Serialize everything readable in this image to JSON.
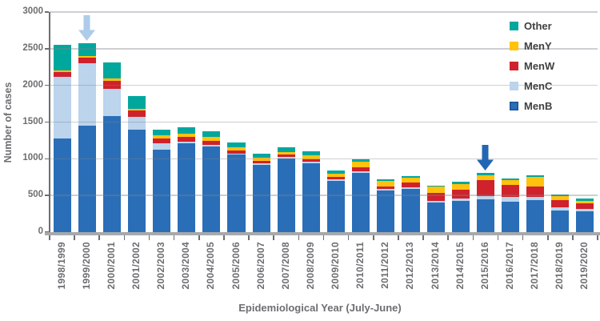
{
  "chart_data": {
    "type": "bar",
    "stacked": true,
    "title": "",
    "xlabel": "Epidemiological Year (July-June)",
    "ylabel": "Number of cases",
    "ylim": [
      0,
      3000
    ],
    "ytick_step": 500,
    "grid": true,
    "legend_position": "top-right",
    "legend_order": [
      "Other",
      "MenY",
      "MenW",
      "MenC",
      "MenB"
    ],
    "categories": [
      "1998/1999",
      "1999/2000",
      "2000/2001",
      "2001/2002",
      "2002/2003",
      "2003/2004",
      "2004/2005",
      "2005/2006",
      "2006/2007",
      "2007/2008",
      "2008/2009",
      "2009/2010",
      "2010/2011",
      "2011/2012",
      "2012/2013",
      "2013/2014",
      "2014/2015",
      "2015/2016",
      "2016/2017",
      "2017/2018",
      "2018/2019",
      "2019/2020"
    ],
    "series": [
      {
        "name": "MenB",
        "color": "#2A6EB8",
        "swatch_border": "#1A5496",
        "values": [
          1275,
          1455,
          1580,
          1395,
          1120,
          1210,
          1165,
          1055,
          915,
          1005,
          935,
          700,
          810,
          565,
          590,
          400,
          420,
          445,
          410,
          435,
          290,
          280
        ]
      },
      {
        "name": "MenC",
        "color": "#BCD4EC",
        "values": [
          845,
          845,
          375,
          180,
          90,
          20,
          20,
          15,
          20,
          20,
          20,
          20,
          20,
          20,
          25,
          30,
          35,
          45,
          70,
          45,
          45,
          35
        ]
      },
      {
        "name": "MenW",
        "color": "#CF222C",
        "values": [
          60,
          75,
          110,
          80,
          65,
          70,
          55,
          40,
          35,
          35,
          35,
          30,
          50,
          35,
          60,
          100,
          125,
          220,
          160,
          145,
          100,
          75
        ]
      },
      {
        "name": "MenY",
        "color": "#FFC20D",
        "values": [
          25,
          30,
          35,
          30,
          45,
          45,
          55,
          45,
          40,
          35,
          60,
          50,
          75,
          75,
          65,
          90,
          70,
          70,
          70,
          125,
          60,
          35
        ]
      },
      {
        "name": "Other",
        "color": "#00A79D",
        "values": [
          350,
          175,
          210,
          165,
          80,
          85,
          85,
          65,
          55,
          65,
          50,
          35,
          35,
          20,
          25,
          10,
          35,
          30,
          20,
          20,
          20,
          30
        ]
      }
    ],
    "annotations": [
      {
        "type": "arrow-down",
        "target_category": "1999/2000",
        "color": "#AECBEA"
      },
      {
        "type": "arrow-down",
        "target_category": "2015/2016",
        "color": "#2166B3"
      }
    ]
  }
}
